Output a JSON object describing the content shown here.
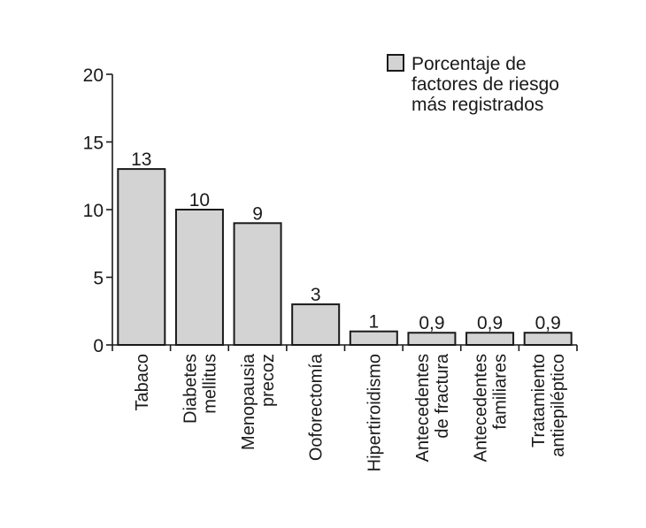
{
  "chart_data": {
    "type": "bar",
    "categories": [
      [
        "Tabaco"
      ],
      [
        "Diabetes",
        "mellitus"
      ],
      [
        "Menopausia",
        "precoz"
      ],
      [
        "Ooforectomía"
      ],
      [
        "Hipertiroidismo"
      ],
      [
        "Antecedentes",
        "de fractura"
      ],
      [
        "Antecedentes",
        "familiares"
      ],
      [
        "Tratamiento",
        "antiepiléptico"
      ]
    ],
    "values": [
      13,
      10,
      9,
      3,
      1,
      0.9,
      0.9,
      0.9
    ],
    "data_labels": [
      "13",
      "10",
      "9",
      "3",
      "1",
      "0,9",
      "0,9",
      "0,9"
    ],
    "series": [
      {
        "name": [
          "Porcentaje de",
          "factores de riesgo",
          "más registrados"
        ],
        "values": [
          13,
          10,
          9,
          3,
          1,
          0.9,
          0.9,
          0.9
        ]
      }
    ],
    "yticks": [
      "0",
      "5",
      "10",
      "15",
      "20"
    ],
    "ylim": [
      0,
      20
    ],
    "legend_position": "top-right",
    "grid": false,
    "colors": {
      "bar_fill": "#d3d3d3",
      "bar_stroke": "#1a1a1a",
      "axis": "#1a1a1a"
    }
  }
}
